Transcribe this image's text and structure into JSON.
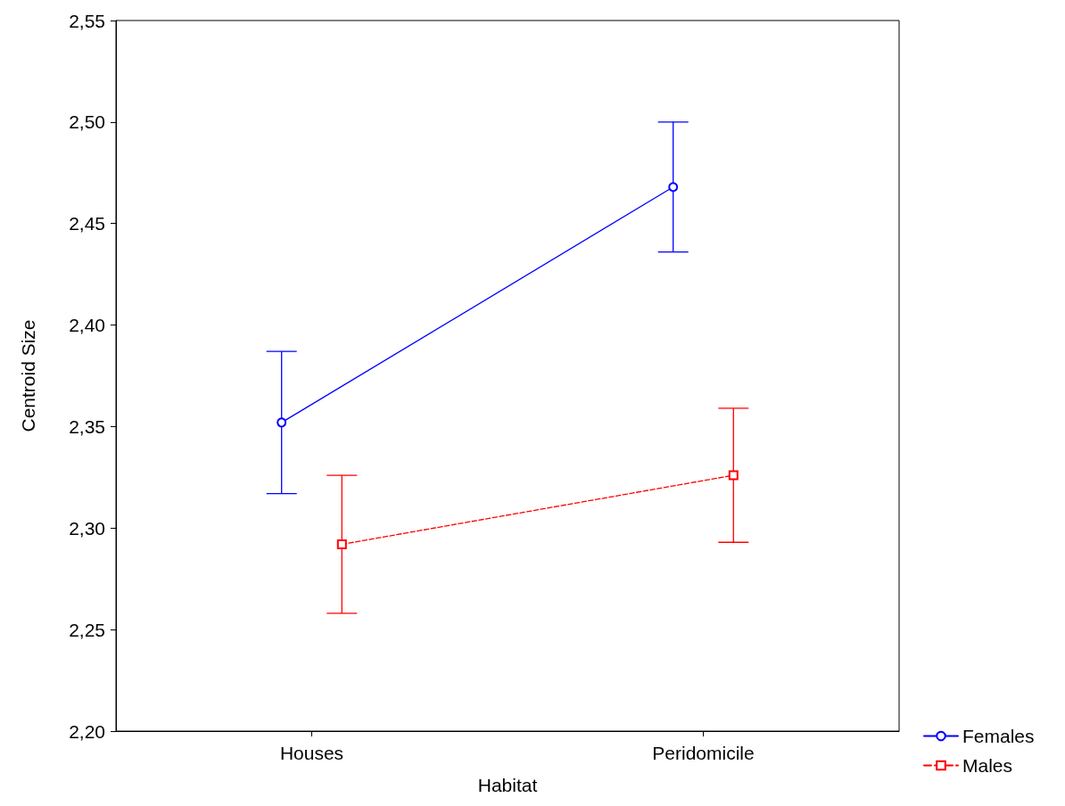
{
  "chart_data": {
    "type": "line",
    "xlabel": "Habitat",
    "ylabel": "Centroid Size",
    "categories": [
      "Houses",
      "Peridomicile"
    ],
    "series": [
      {
        "name": "Females",
        "color": "#0000ff",
        "values": [
          2.352,
          2.468
        ],
        "errors": [
          0.035,
          0.032
        ],
        "marker": "circle",
        "line_style": "solid"
      },
      {
        "name": "Males",
        "color": "#ff0000",
        "values": [
          2.292,
          2.326
        ],
        "errors": [
          0.034,
          0.033
        ],
        "marker": "square",
        "line_style": "dashed"
      }
    ],
    "ylim": [
      2.2,
      2.55
    ],
    "yticks": [
      {
        "value": 2.2,
        "label": "2,20"
      },
      {
        "value": 2.25,
        "label": "2,25"
      },
      {
        "value": 2.3,
        "label": "2,30"
      },
      {
        "value": 2.35,
        "label": "2,35"
      },
      {
        "value": 2.4,
        "label": "2,40"
      },
      {
        "value": 2.45,
        "label": "2,45"
      },
      {
        "value": 2.5,
        "label": "2,50"
      },
      {
        "value": 2.55,
        "label": "2,55"
      }
    ],
    "grid": false,
    "legend": "bottom right"
  }
}
